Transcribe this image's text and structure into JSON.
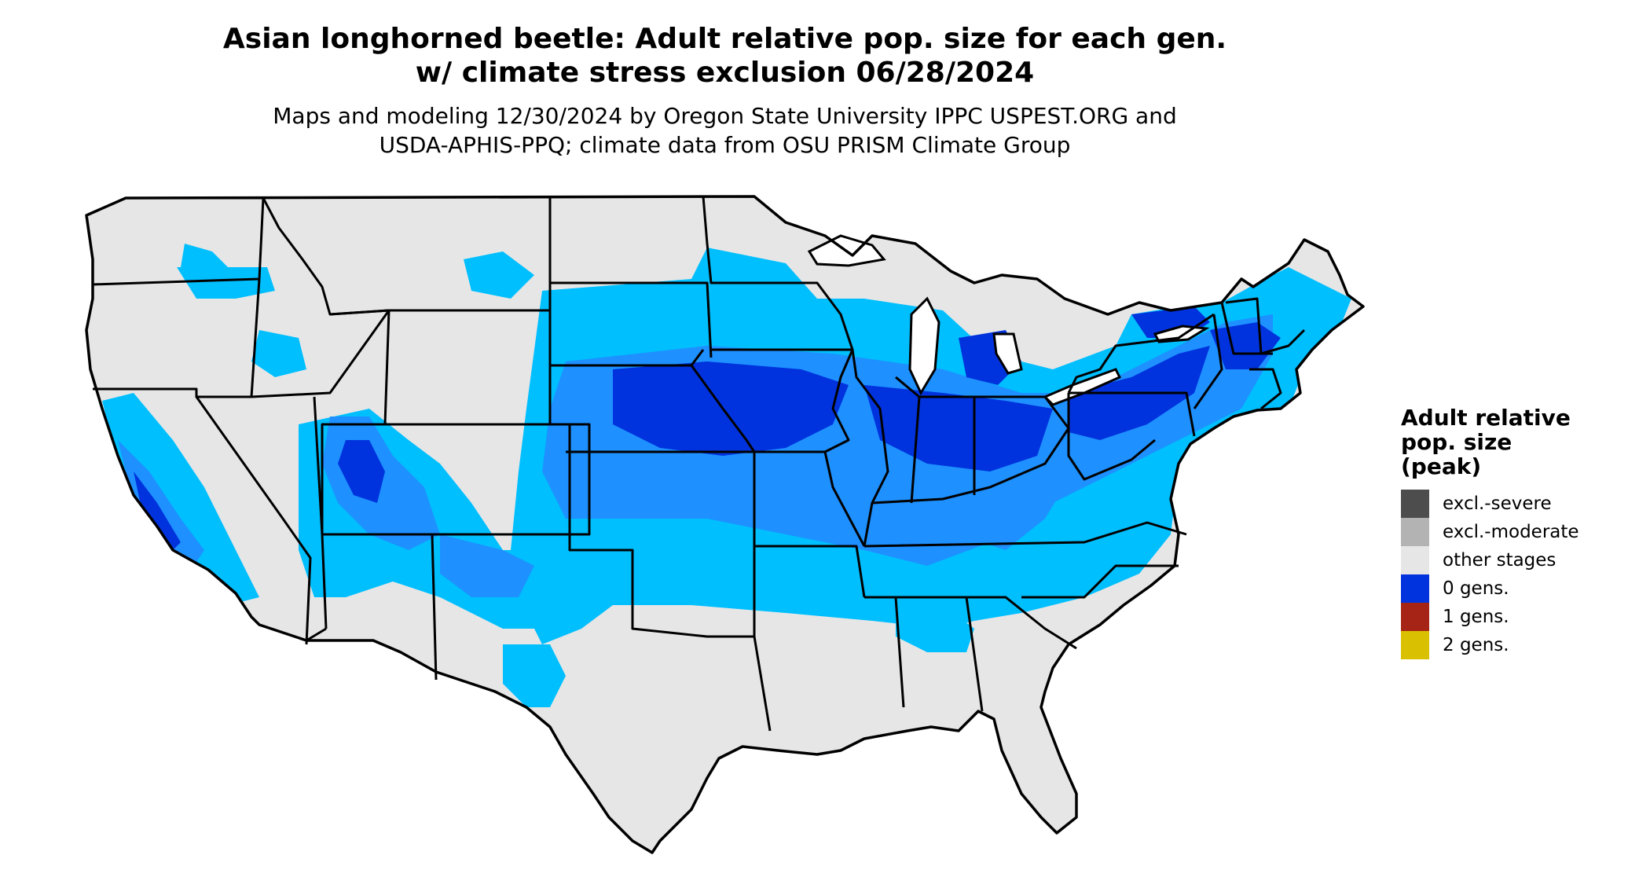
{
  "title": {
    "line1": "Asian longhorned beetle: Adult relative pop. size for each gen.",
    "line2": "w/ climate stress exclusion 06/28/2024"
  },
  "subtitle": {
    "line1": "Maps and modeling 12/30/2024 by Oregon State University IPPC USPEST.ORG and",
    "line2": "USDA-APHIS-PPQ; climate data from OSU PRISM Climate Group"
  },
  "legend": {
    "title_lines": [
      "Adult relative",
      "pop. size",
      "(peak)"
    ],
    "items": [
      {
        "label": "excl.-severe",
        "color": "#4d4d4d"
      },
      {
        "label": "excl.-moderate",
        "color": "#b3b3b3"
      },
      {
        "label": "other stages",
        "color": "#e6e6e6"
      },
      {
        "label": "0 gens.",
        "color": "#0033dd"
      },
      {
        "label": "1 gens.",
        "color": "#a52416"
      },
      {
        "label": "2 gens.",
        "color": "#d9c000"
      }
    ]
  },
  "map_colors": {
    "land": "#e6e6e6",
    "light_blue": "#00bfff",
    "mid_blue": "#1e90ff",
    "dark_blue": "#0033dd",
    "border": "#000000"
  }
}
